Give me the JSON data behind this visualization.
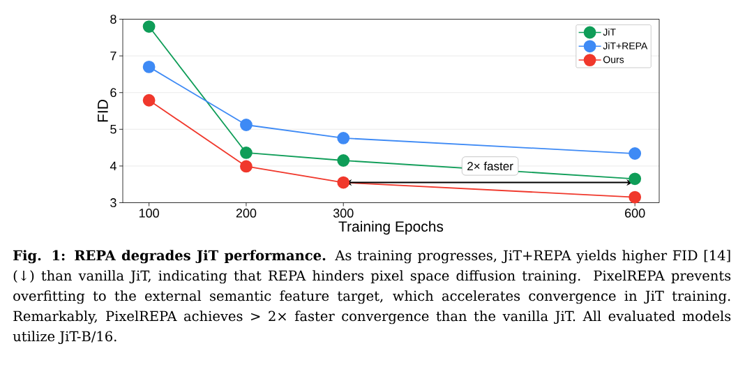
{
  "chart_data": {
    "type": "line",
    "xlabel": "Training Epochs",
    "ylabel": "FID",
    "x": [
      100,
      200,
      300,
      600
    ],
    "xlim": [
      73,
      625
    ],
    "xticks": [
      100,
      200,
      300,
      600
    ],
    "ylim": [
      3,
      8
    ],
    "yticks": [
      3,
      4,
      5,
      6,
      7,
      8
    ],
    "grid": "y",
    "legend": "top right",
    "marker": "circle",
    "series": [
      {
        "name": "JiT",
        "color": "#0f9d58",
        "values": [
          7.8,
          4.36,
          4.15,
          3.65
        ]
      },
      {
        "name": "JiT+REPA",
        "color": "#3e8af5",
        "values": [
          6.7,
          5.12,
          4.76,
          4.34
        ]
      },
      {
        "name": "Ours",
        "color": "#f0382c",
        "values": [
          5.79,
          3.99,
          3.55,
          3.15
        ]
      }
    ],
    "annotations": [
      {
        "text": "2× faster",
        "x": 451,
        "y": 4.0
      },
      "**Fig. 1: REPA degrades JiT performance.** As training progresses, JiT+REPA yields higher FID [14] (↓) than vanilla JiT, indicating that REPA hinders pixel space diffusion training. PixelREPA prevents overfitting to the external semantic feature target, which accelerates convergence in JiT training. Remarkably, PixelREPA achieves > 2× faster convergence than the vanilla JiT. All evaluated models utilize JiT-B/16."
    ]
  }
}
